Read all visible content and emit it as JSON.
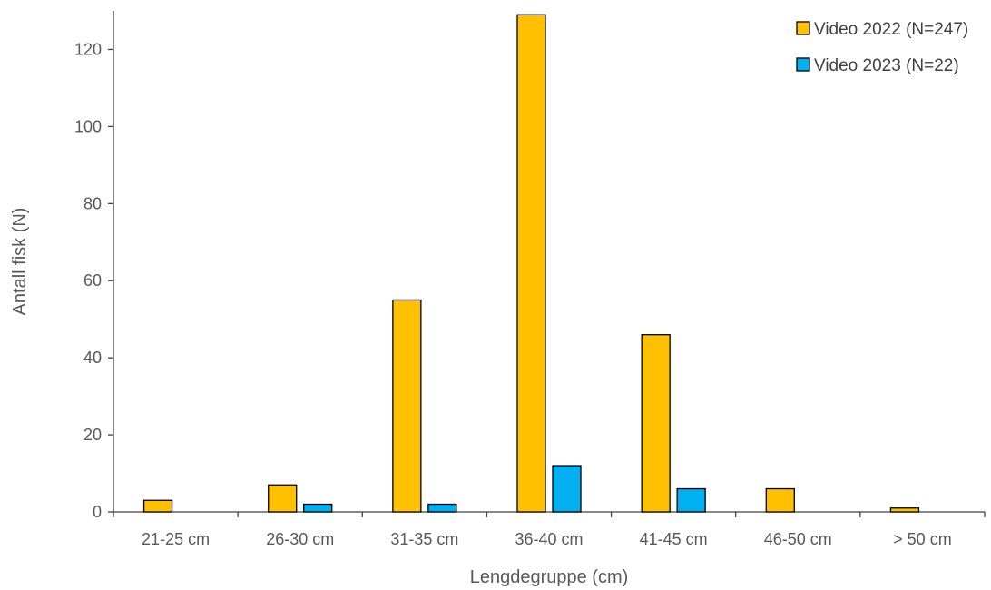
{
  "chart_data": {
    "type": "bar",
    "title": "",
    "xlabel": "Lengdegruppe (cm)",
    "ylabel": "Antall fisk (N)",
    "ylim": [
      0,
      130
    ],
    "y_ticks": [
      0,
      20,
      40,
      60,
      80,
      100,
      120
    ],
    "grid": false,
    "legend_position": "top-right",
    "categories": [
      "21-25 cm",
      "26-30 cm",
      "31-35 cm",
      "36-40 cm",
      "41-45 cm",
      "46-50 cm",
      "> 50 cm"
    ],
    "series": [
      {
        "name": "Video 2022 (N=247)",
        "color": "#FFC000",
        "values": [
          3,
          7,
          55,
          129,
          46,
          6,
          1
        ]
      },
      {
        "name": "Video 2023 (N=22)",
        "color": "#00B0F0",
        "values": [
          0,
          2,
          2,
          12,
          6,
          0,
          0
        ]
      }
    ],
    "colors": {
      "axis": "#404040",
      "bar_outline": "#000000",
      "text": "#595959"
    }
  }
}
